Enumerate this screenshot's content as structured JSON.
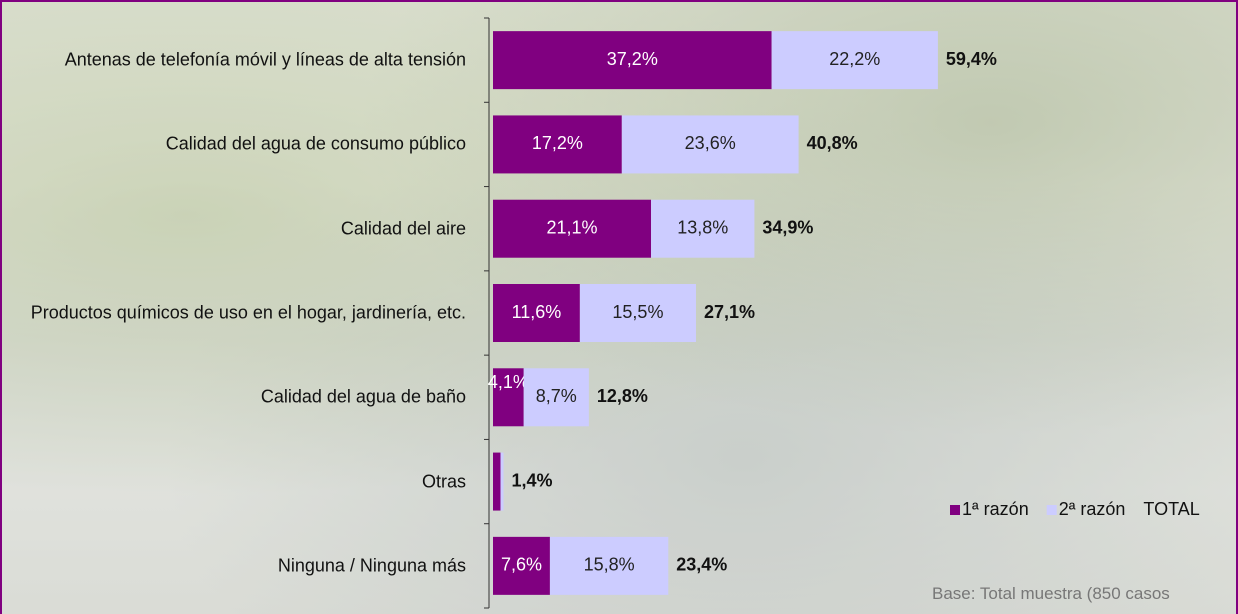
{
  "chart_data": {
    "type": "bar",
    "orientation": "horizontal",
    "stacked": true,
    "categories": [
      "Antenas de telefonía móvil y líneas de alta tensión",
      "Calidad del agua de consumo público",
      "Calidad del aire",
      "Productos químicos de uso en el hogar, jardinería, etc.",
      "Calidad del agua de baño",
      "Otras",
      "Ninguna / Ninguna más"
    ],
    "series": [
      {
        "name": "1ª razón",
        "color": "#800080",
        "values": [
          37.2,
          17.2,
          21.1,
          11.6,
          4.1,
          1.0,
          7.6
        ],
        "value_labels": [
          "37,2%",
          "17,2%",
          "21,1%",
          "11,6%",
          "4,1%",
          null,
          "7,6%"
        ]
      },
      {
        "name": "2ª razón",
        "color": "#ccccff",
        "values": [
          22.2,
          23.6,
          13.8,
          15.5,
          8.7,
          0.4,
          15.8
        ],
        "value_labels": [
          "22,2%",
          "23,6%",
          "13,8%",
          "15,5%",
          "8,7%",
          null,
          "15,8%"
        ]
      },
      {
        "name": "TOTAL",
        "values": [
          59.4,
          40.8,
          34.9,
          27.1,
          12.8,
          1.4,
          23.4
        ],
        "value_labels": [
          "59,4%",
          "40,8%",
          "34,9%",
          "27,1%",
          "12,8%",
          "1,4%",
          "23,4%"
        ]
      }
    ],
    "legend": "bottom-right",
    "note": "Base: Total muestra (850 casos"
  }
}
